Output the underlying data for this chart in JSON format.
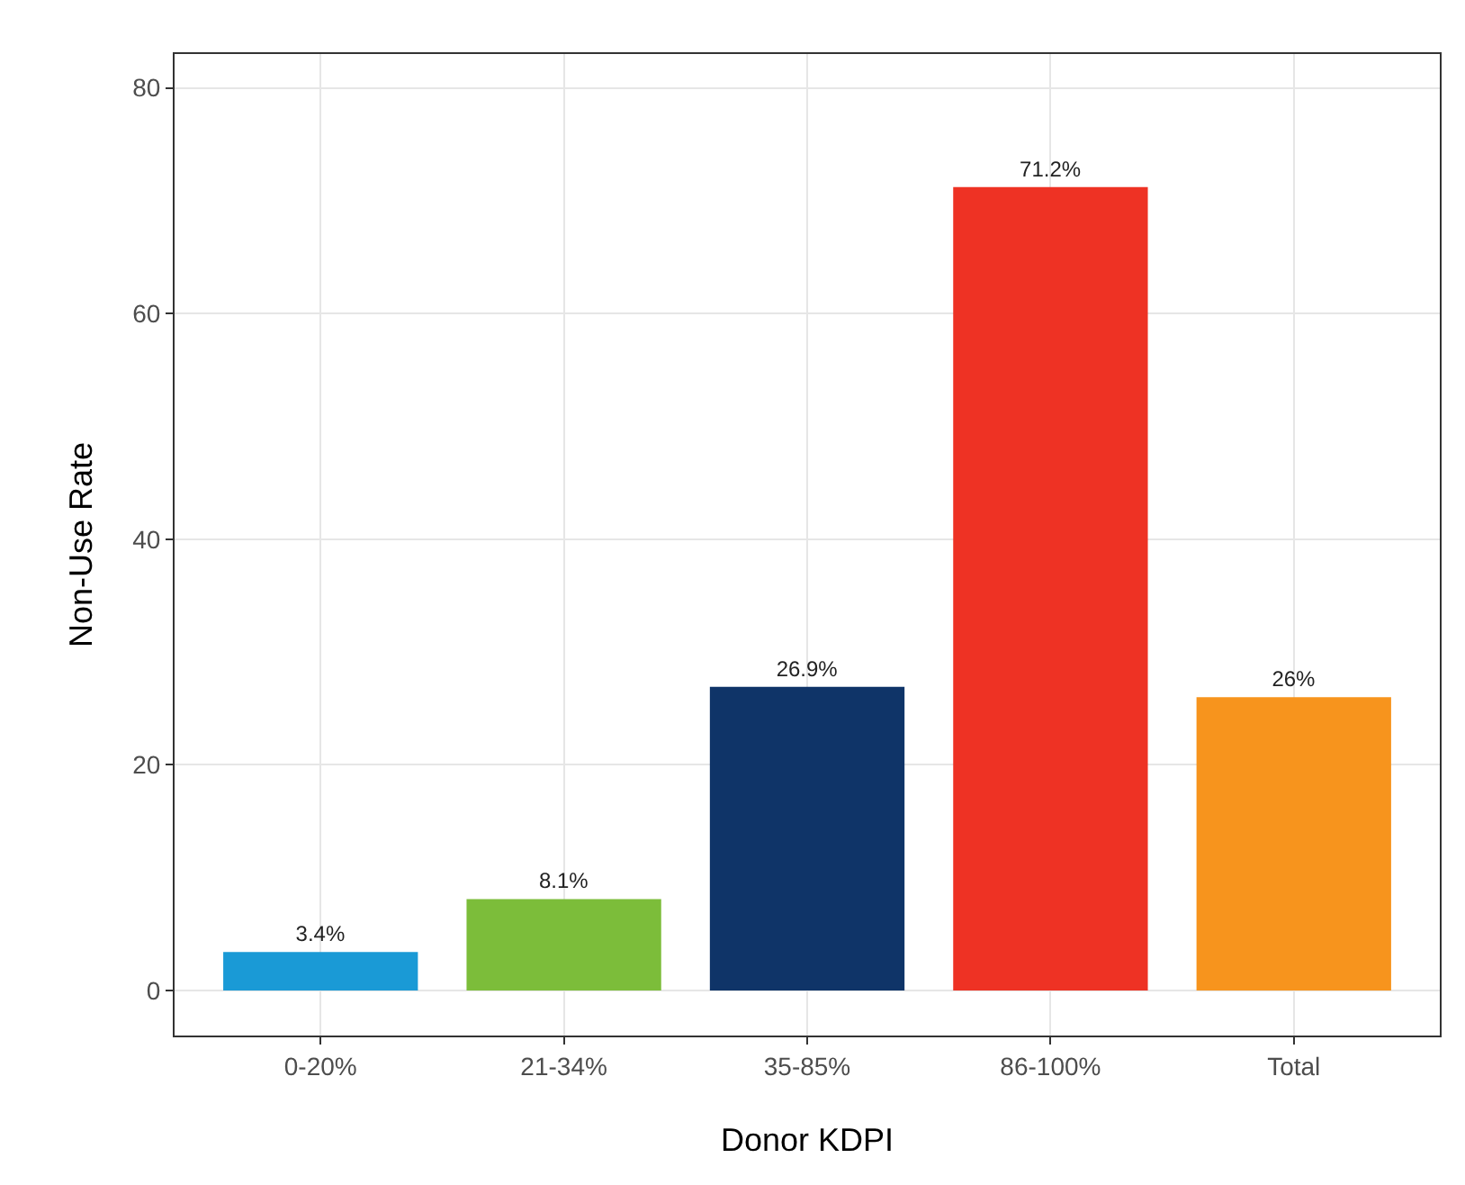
{
  "chart_data": {
    "type": "bar",
    "xlabel": "Donor KDPI",
    "ylabel": "Non-Use Rate",
    "categories": [
      "0-20%",
      "21-34%",
      "35-85%",
      "86-100%",
      "Total"
    ],
    "values": [
      3.4,
      8.1,
      26.9,
      71.2,
      26
    ],
    "value_labels": [
      "3.4%",
      "8.1%",
      "26.9%",
      "71.2%",
      "26%"
    ],
    "colors": [
      "#1a9ad6",
      "#7cbd3a",
      "#0f3468",
      "#ee3224",
      "#f7941d"
    ],
    "ylim": [
      -4,
      83
    ],
    "yticks": [
      0,
      20,
      40,
      60,
      80
    ],
    "grid": true
  }
}
